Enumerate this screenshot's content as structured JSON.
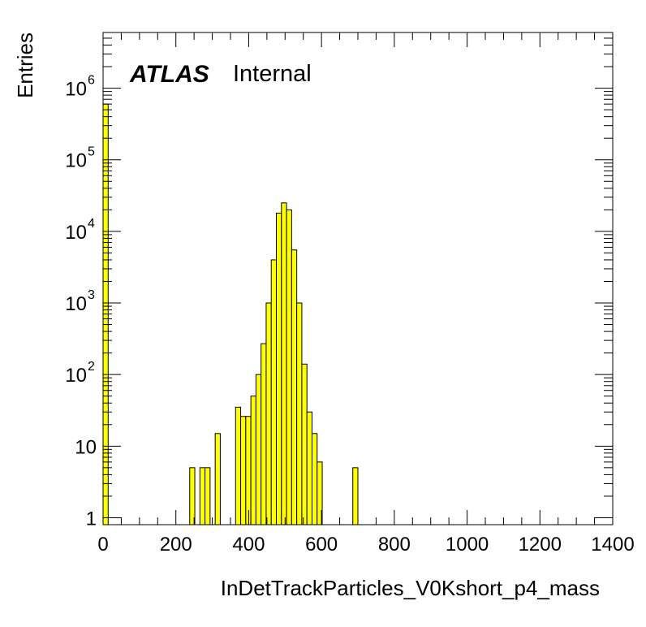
{
  "chart_data": {
    "type": "bar",
    "title": "",
    "xlabel": "InDetTrackParticles_V0Kshort_p4_mass",
    "ylabel": "Entries",
    "xlim": [
      0,
      1400
    ],
    "ylim": [
      0.8,
      6000000
    ],
    "y_scale": "log",
    "grid": false,
    "legend": "none",
    "bin_width": 14,
    "bar_color": "#ffff00",
    "edge_color": "#000000",
    "annotation": {
      "experiment": "ATLAS",
      "status": "Internal"
    },
    "x_ticks": [
      {
        "value": 0,
        "label": "0"
      },
      {
        "value": 200,
        "label": "200"
      },
      {
        "value": 400,
        "label": "400"
      },
      {
        "value": 600,
        "label": "600"
      },
      {
        "value": 800,
        "label": "800"
      },
      {
        "value": 1000,
        "label": "1000"
      },
      {
        "value": 1200,
        "label": "1200"
      },
      {
        "value": 1400,
        "label": "1400"
      }
    ],
    "y_ticks": [
      {
        "value": 1,
        "base": "1",
        "exp": ""
      },
      {
        "value": 10,
        "base": "10",
        "exp": ""
      },
      {
        "value": 100,
        "base": "10",
        "exp": "2"
      },
      {
        "value": 1000,
        "base": "10",
        "exp": "3"
      },
      {
        "value": 10000,
        "base": "10",
        "exp": "4"
      },
      {
        "value": 100000,
        "base": "10",
        "exp": "5"
      },
      {
        "value": 1000000,
        "base": "10",
        "exp": "6"
      }
    ],
    "bins": [
      {
        "x": 0,
        "y": 600000
      },
      {
        "x": 238,
        "y": 5
      },
      {
        "x": 266,
        "y": 5
      },
      {
        "x": 280,
        "y": 5
      },
      {
        "x": 308,
        "y": 15
      },
      {
        "x": 364,
        "y": 35
      },
      {
        "x": 378,
        "y": 26
      },
      {
        "x": 392,
        "y": 26
      },
      {
        "x": 406,
        "y": 50
      },
      {
        "x": 420,
        "y": 100
      },
      {
        "x": 434,
        "y": 270
      },
      {
        "x": 448,
        "y": 1000
      },
      {
        "x": 462,
        "y": 4000
      },
      {
        "x": 476,
        "y": 18000
      },
      {
        "x": 490,
        "y": 25000
      },
      {
        "x": 504,
        "y": 20000
      },
      {
        "x": 518,
        "y": 5500
      },
      {
        "x": 532,
        "y": 1000
      },
      {
        "x": 546,
        "y": 140
      },
      {
        "x": 560,
        "y": 30
      },
      {
        "x": 574,
        "y": 15
      },
      {
        "x": 588,
        "y": 6
      },
      {
        "x": 686,
        "y": 5
      }
    ]
  }
}
